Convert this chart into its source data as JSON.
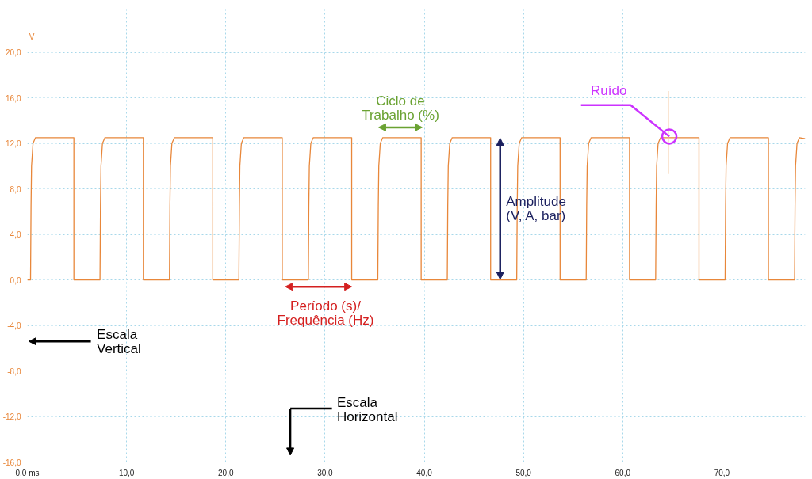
{
  "chart_data": {
    "type": "line",
    "ylabel": "V",
    "xlim": [
      0,
      78.4
    ],
    "ylim": [
      -16,
      24
    ],
    "xticks": [
      {
        "value": 0,
        "label": "0,0 ms"
      },
      {
        "value": 10,
        "label": "10,0"
      },
      {
        "value": 20,
        "label": "20,0"
      },
      {
        "value": 30,
        "label": "30,0"
      },
      {
        "value": 40,
        "label": "40,0"
      },
      {
        "value": 50,
        "label": "50,0"
      },
      {
        "value": 60,
        "label": "60,0"
      },
      {
        "value": 70,
        "label": "70,0"
      }
    ],
    "yticks": [
      {
        "value": -16,
        "label": "-16,0"
      },
      {
        "value": -12,
        "label": "-12,0"
      },
      {
        "value": -8,
        "label": "-8,0"
      },
      {
        "value": -4,
        "label": "-4,0"
      },
      {
        "value": 0,
        "label": "0,0"
      },
      {
        "value": 4,
        "label": "4,0"
      },
      {
        "value": 8,
        "label": "8,0"
      },
      {
        "value": 12,
        "label": "12,0"
      },
      {
        "value": 16,
        "label": "16,0"
      },
      {
        "value": 20,
        "label": "20,0"
      }
    ],
    "grid": true,
    "series": [
      {
        "color": "#e8873a",
        "x": [
          0,
          0.32,
          0.37,
          0.42,
          0.57,
          0.82,
          4.69,
          4.69,
          7.32,
          7.37,
          7.42,
          7.57,
          7.82,
          11.69,
          11.69,
          14.32,
          14.37,
          14.42,
          14.57,
          14.82,
          18.69,
          18.69,
          21.32,
          21.37,
          21.42,
          21.57,
          21.82,
          25.69,
          25.69,
          28.32,
          28.37,
          28.42,
          28.57,
          28.82,
          32.69,
          32.69,
          35.32,
          35.37,
          35.42,
          35.57,
          35.82,
          39.69,
          39.69,
          42.32,
          42.37,
          42.42,
          42.57,
          42.82,
          46.69,
          46.69,
          49.32,
          49.37,
          49.42,
          49.57,
          49.82,
          53.69,
          53.69,
          56.32,
          56.37,
          56.42,
          56.57,
          56.82,
          60.69,
          60.69,
          63.32,
          63.37,
          63.42,
          63.57,
          63.82,
          67.69,
          67.69,
          70.32,
          70.37,
          70.42,
          70.57,
          70.82,
          74.69,
          74.69,
          77.32,
          77.37,
          77.42,
          77.57,
          77.82,
          78.4
        ],
        "values": [
          0,
          0,
          6.5,
          10,
          12,
          12.5,
          12.5,
          0,
          0,
          6.5,
          10,
          12,
          12.5,
          12.5,
          0,
          0,
          6.5,
          10,
          12,
          12.5,
          12.5,
          0,
          0,
          6.5,
          10,
          12,
          12.5,
          12.5,
          0,
          0,
          6.5,
          10,
          12,
          12.5,
          12.5,
          0,
          0,
          6.5,
          10,
          12,
          12.5,
          12.5,
          0,
          0,
          6.5,
          10,
          12,
          12.5,
          12.5,
          0,
          0,
          6.5,
          10,
          12,
          12.5,
          12.5,
          0,
          0,
          6.5,
          10,
          12,
          12.5,
          12.5,
          0,
          0,
          6.5,
          10,
          12,
          12.5,
          12.5,
          0,
          0,
          6.5,
          10,
          12,
          12.5,
          12.5,
          0,
          0,
          6.5,
          10,
          12,
          12.5,
          12.4
        ]
      },
      {
        "color": "#f5c9a0",
        "x": [
          64.6,
          64.6
        ],
        "values": [
          16.6,
          9.3
        ]
      }
    ],
    "annotations": [
      "Ciclo de\nTrabalho (%)",
      "Amplitude\n(V, A, bar)",
      "Período (s)/\nFrequência (Hz)",
      {
        "text": "Ruído",
        "x": 64.7,
        "y": 12.6
      },
      "Escala\nVertical",
      "Escala\nHorizontal"
    ]
  }
}
